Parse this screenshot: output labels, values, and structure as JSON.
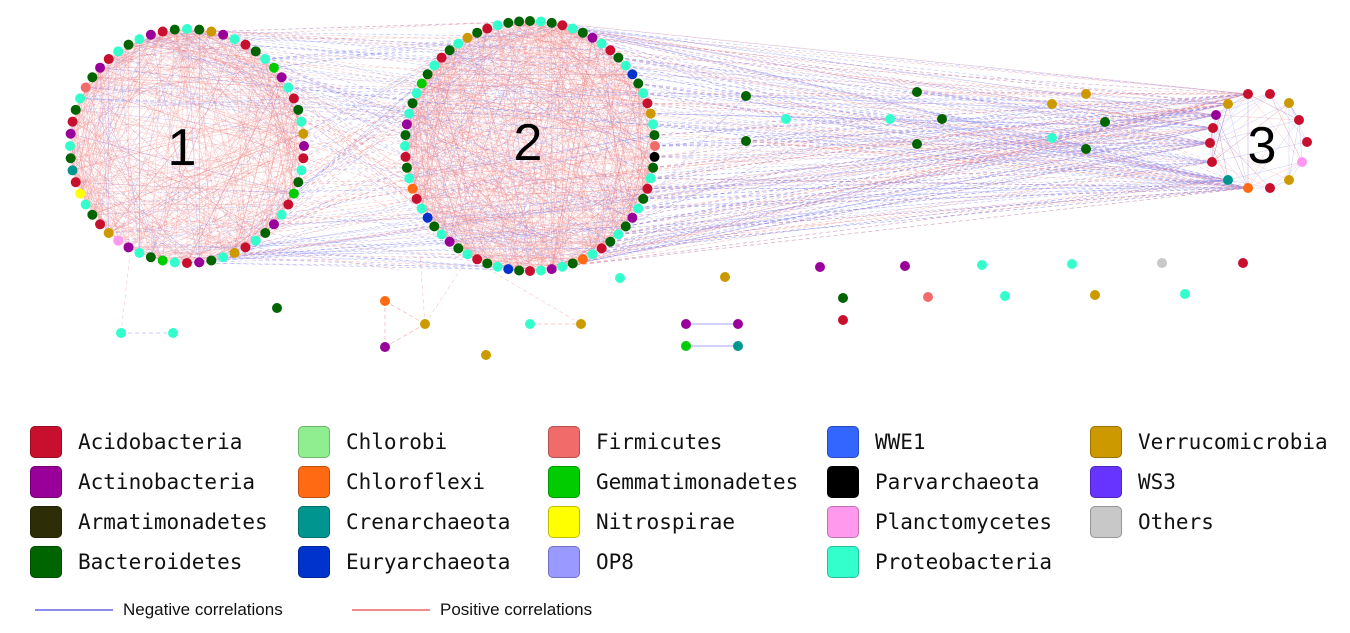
{
  "colors": {
    "positive": "#f28b8b",
    "negative": "#8c8cf0"
  },
  "modules": [
    {
      "label": "1"
    },
    {
      "label": "2"
    },
    {
      "label": "3"
    }
  ],
  "phyla": [
    {
      "name": "Acidobacteria",
      "color": "#c8102e"
    },
    {
      "name": "Actinobacteria",
      "color": "#990099"
    },
    {
      "name": "Armatimonadetes",
      "color": "#2d2d08"
    },
    {
      "name": "Bacteroidetes",
      "color": "#006400"
    },
    {
      "name": "Chlorobi",
      "color": "#90ee90"
    },
    {
      "name": "Chloroflexi",
      "color": "#ff6a13"
    },
    {
      "name": "Crenarchaeota",
      "color": "#00968f"
    },
    {
      "name": "Euryarchaeota",
      "color": "#0033cc"
    },
    {
      "name": "Firmicutes",
      "color": "#f26b6b"
    },
    {
      "name": "Gemmatimonadetes",
      "color": "#00cc00"
    },
    {
      "name": "Nitrospirae",
      "color": "#ffff00"
    },
    {
      "name": "OP8",
      "color": "#9999ff"
    },
    {
      "name": "WWE1",
      "color": "#3366ff"
    },
    {
      "name": "Parvarchaeota",
      "color": "#000000"
    },
    {
      "name": "Planctomycetes",
      "color": "#ff99ee"
    },
    {
      "name": "Proteobacteria",
      "color": "#33ffcc"
    },
    {
      "name": "Verrucomicrobia",
      "color": "#cc9900"
    },
    {
      "name": "WS3",
      "color": "#6633ff"
    },
    {
      "name": "Others",
      "color": "#c8c8c8"
    }
  ],
  "correlations": {
    "negative_label": "Negative correlations",
    "positive_label": "Positive correlations"
  }
}
